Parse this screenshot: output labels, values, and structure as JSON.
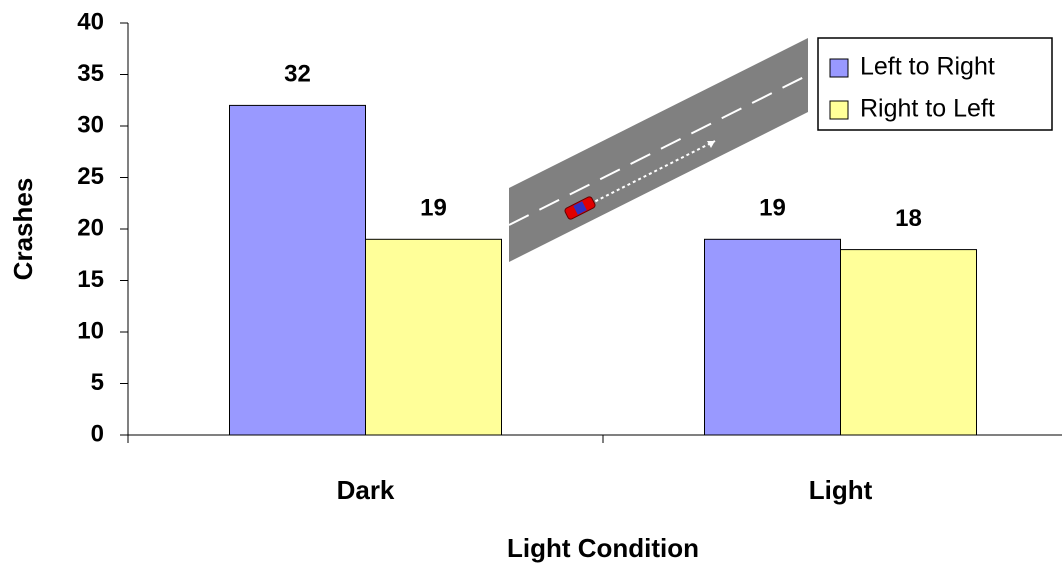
{
  "chart_data": {
    "type": "bar",
    "x_label": "Light Condition",
    "y_label": "Crashes",
    "categories": [
      "Dark",
      "Light"
    ],
    "series": [
      {
        "name": "Left to Right",
        "color": "#9999ff",
        "values": [
          32,
          19
        ]
      },
      {
        "name": "Right to Left",
        "color": "#ffff99",
        "values": [
          19,
          18
        ]
      }
    ],
    "ylim": [
      0,
      40
    ],
    "yticks": [
      0,
      5,
      10,
      15,
      20,
      25,
      30,
      35,
      40
    ],
    "grid": false,
    "legend": "top-right"
  }
}
